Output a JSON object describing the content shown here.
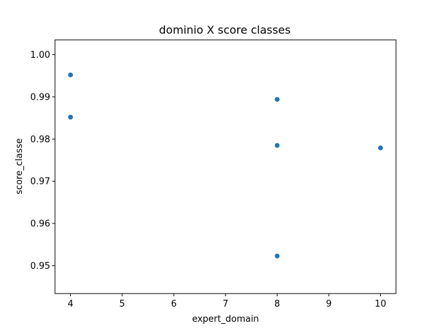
{
  "chart_data": {
    "type": "scatter",
    "title": "dominio X score classes",
    "xlabel": "expert_domain",
    "ylabel": "score_classe",
    "xlim": [
      3.7,
      10.3
    ],
    "ylim": [
      0.9434,
      1.0035
    ],
    "x_ticks": [
      4,
      5,
      6,
      7,
      8,
      9,
      10
    ],
    "x_tick_labels": [
      "4",
      "5",
      "6",
      "7",
      "8",
      "9",
      "10"
    ],
    "y_ticks": [
      0.95,
      0.96,
      0.97,
      0.98,
      0.99,
      1.0
    ],
    "y_tick_labels": [
      "0.95",
      "0.96",
      "0.97",
      "0.98",
      "0.99",
      "1.00"
    ],
    "grid": false,
    "point_color": "#1f77b4",
    "points": [
      {
        "x": 4,
        "y": 0.9952
      },
      {
        "x": 4,
        "y": 0.9852
      },
      {
        "x": 8,
        "y": 0.9894
      },
      {
        "x": 8,
        "y": 0.9785
      },
      {
        "x": 8,
        "y": 0.9523
      },
      {
        "x": 10,
        "y": 0.9779
      }
    ]
  }
}
